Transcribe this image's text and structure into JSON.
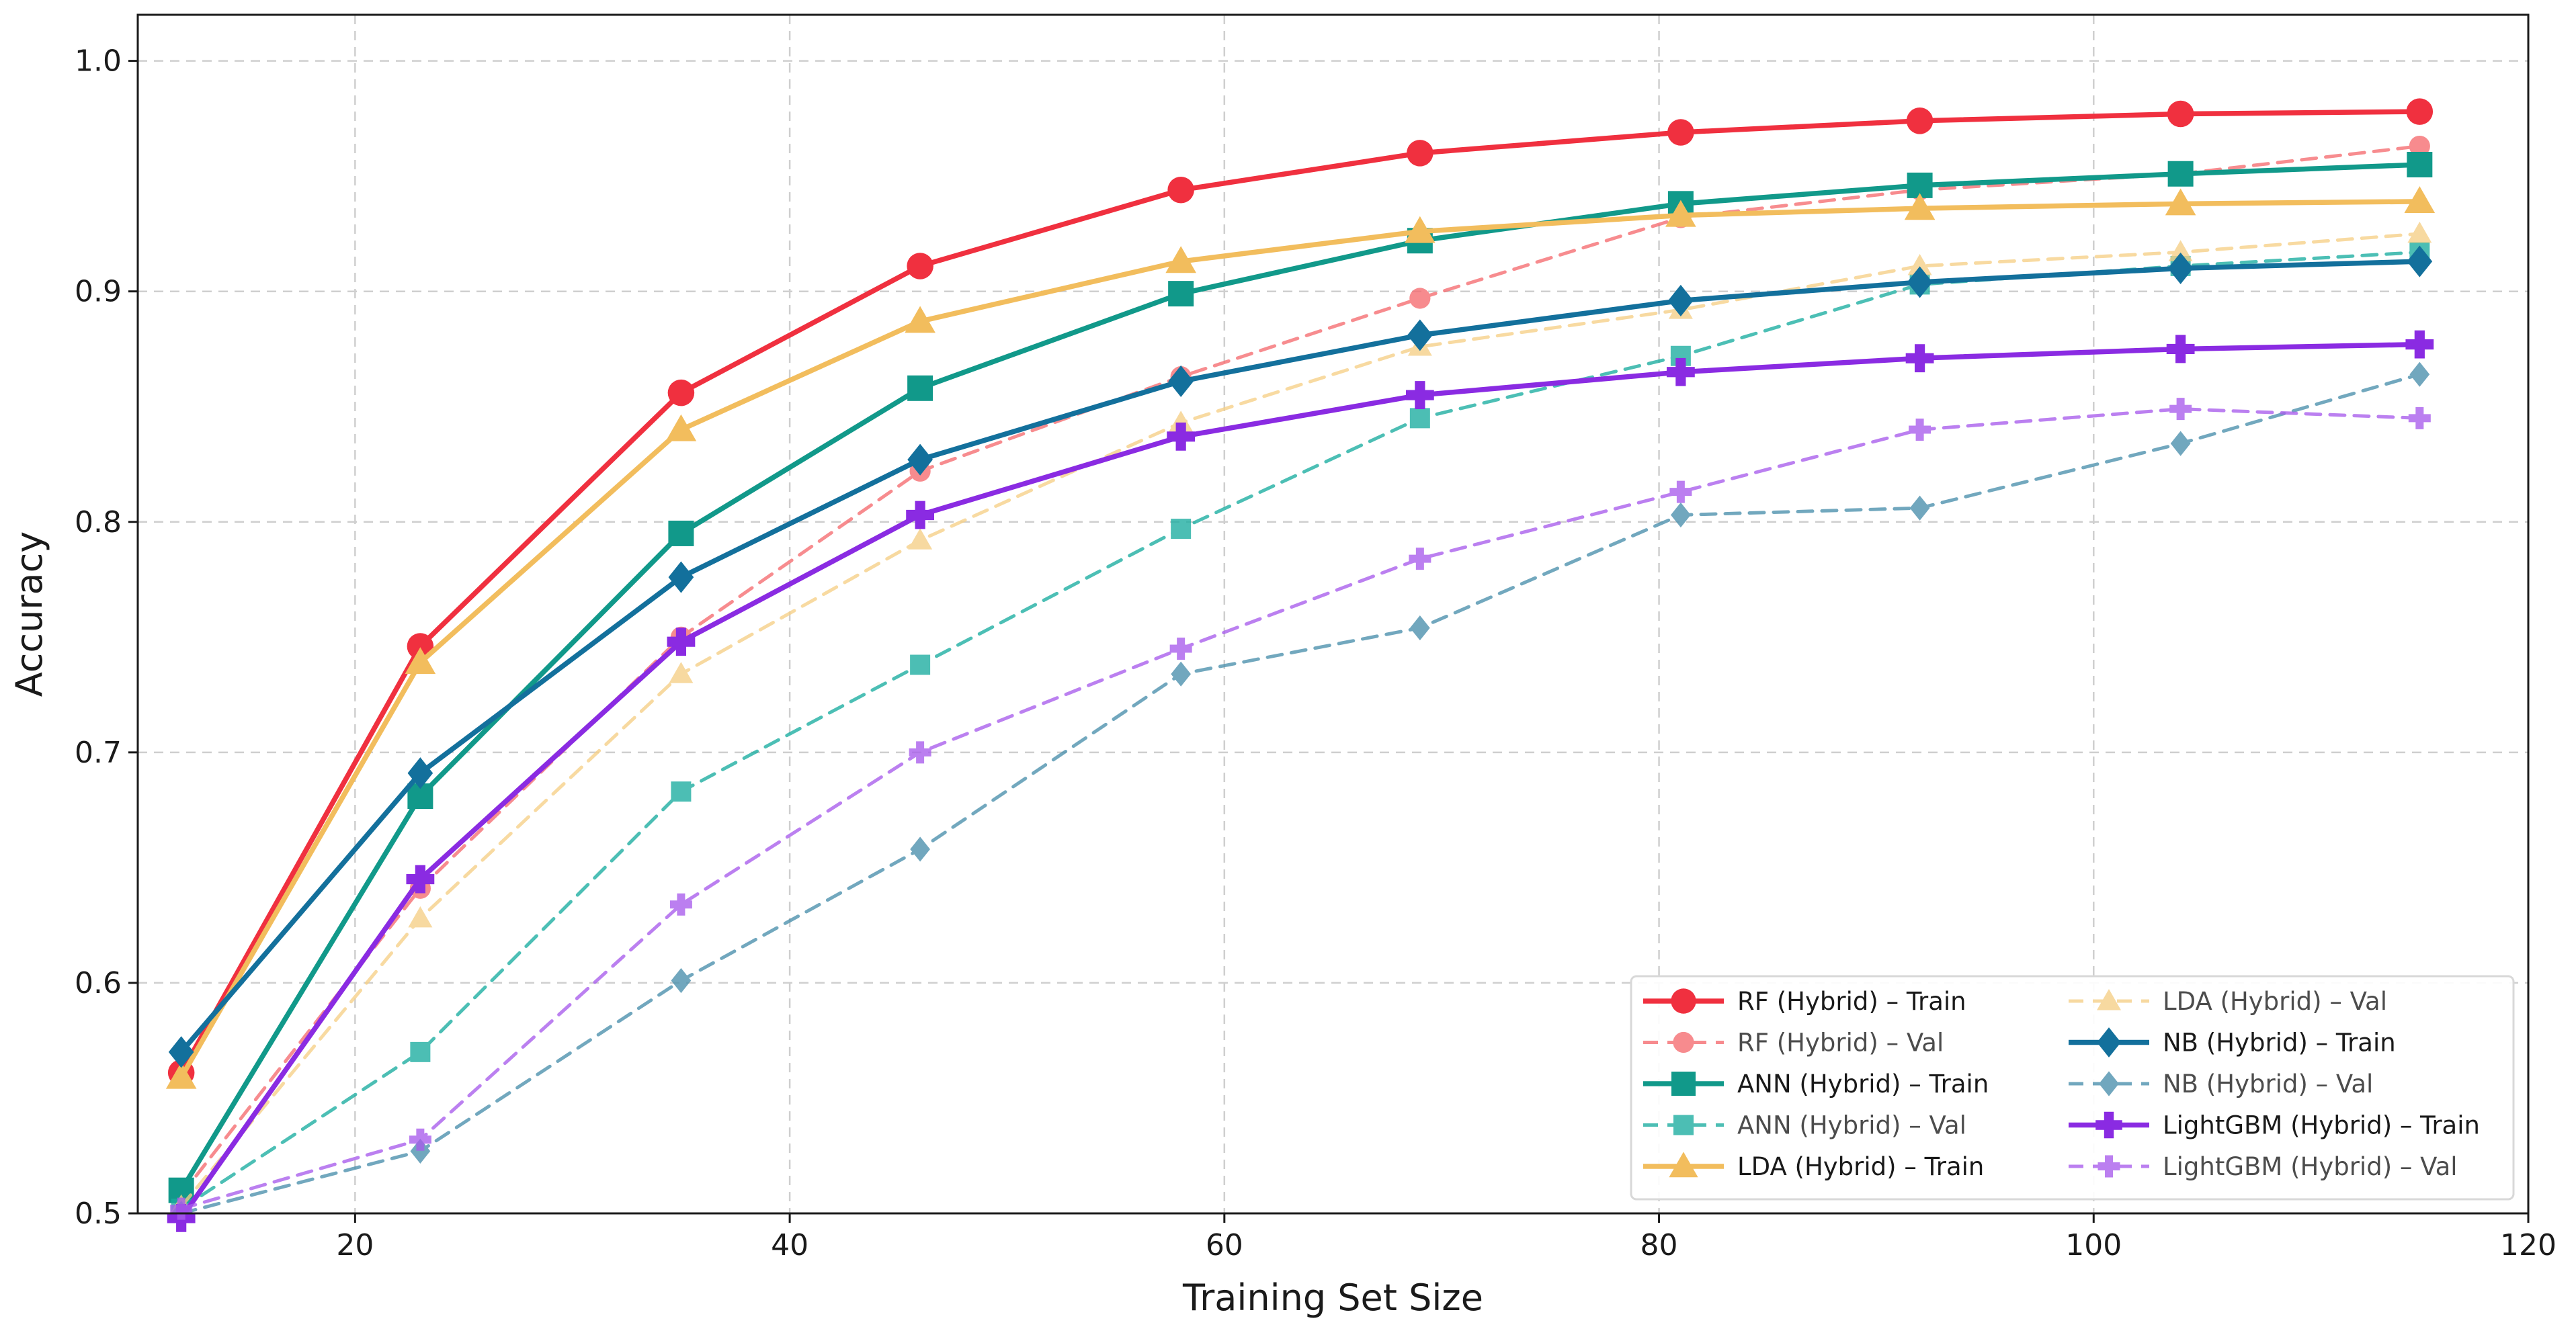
{
  "chart_data": {
    "type": "line",
    "title": "",
    "xlabel": "Training Set Size",
    "ylabel": "Accuracy",
    "xlim": [
      10,
      120
    ],
    "ylim": [
      0.5,
      1.02
    ],
    "xticks": [
      20,
      40,
      60,
      80,
      100,
      120
    ],
    "yticks": [
      0.5,
      0.6,
      0.7,
      0.8,
      0.9,
      1.0
    ],
    "xtick_labels": [
      "20",
      "40",
      "60",
      "80",
      "100",
      "120"
    ],
    "ytick_labels": [
      "0.5",
      "0.6",
      "0.7",
      "0.8",
      "0.9",
      "1.0"
    ],
    "grid": true,
    "legend_position": "bottom-right",
    "x": [
      12,
      23,
      35,
      46,
      58,
      69,
      81,
      92,
      104,
      115
    ],
    "series": [
      {
        "name": "RF (Hybrid) – Train",
        "color": "#f0303f",
        "dash": "solid",
        "marker": "circle",
        "values": [
          0.561,
          0.746,
          0.856,
          0.911,
          0.944,
          0.96,
          0.969,
          0.974,
          0.977,
          0.978
        ]
      },
      {
        "name": "RF (Hybrid) – Val",
        "color": "#f56b6f",
        "dash": "dashed",
        "marker": "circle",
        "values": [
          0.508,
          0.641,
          0.75,
          0.822,
          0.863,
          0.897,
          0.932,
          0.944,
          0.951,
          0.963
        ]
      },
      {
        "name": "ANN (Hybrid) – Train",
        "color": "#11998a",
        "dash": "solid",
        "marker": "square",
        "values": [
          0.51,
          0.681,
          0.795,
          0.858,
          0.899,
          0.922,
          0.938,
          0.946,
          0.951,
          0.955
        ]
      },
      {
        "name": "ANN (Hybrid) – Val",
        "color": "#1aada0",
        "dash": "dashed",
        "marker": "square",
        "values": [
          0.502,
          0.57,
          0.683,
          0.738,
          0.797,
          0.845,
          0.872,
          0.903,
          0.911,
          0.917
        ]
      },
      {
        "name": "LDA (Hybrid) – Train",
        "color": "#f2bd5d",
        "dash": "solid",
        "marker": "triangle",
        "values": [
          0.559,
          0.739,
          0.84,
          0.887,
          0.913,
          0.926,
          0.933,
          0.936,
          0.938,
          0.939
        ]
      },
      {
        "name": "LDA (Hybrid) – Val",
        "color": "#f6cf86",
        "dash": "dashed",
        "marker": "triangle",
        "values": [
          0.503,
          0.628,
          0.734,
          0.792,
          0.843,
          0.876,
          0.892,
          0.911,
          0.917,
          0.925
        ]
      },
      {
        "name": "NB (Hybrid) – Train",
        "color": "#13709c",
        "dash": "solid",
        "marker": "diamond",
        "values": [
          0.57,
          0.691,
          0.776,
          0.827,
          0.861,
          0.881,
          0.896,
          0.904,
          0.91,
          0.913
        ]
      },
      {
        "name": "NB (Hybrid) – Val",
        "color": "#4a8fac",
        "dash": "dashed",
        "marker": "diamond",
        "values": [
          0.5,
          0.527,
          0.601,
          0.658,
          0.734,
          0.754,
          0.803,
          0.806,
          0.834,
          0.864
        ]
      },
      {
        "name": "LightGBM (Hybrid) – Train",
        "color": "#8a2be2",
        "dash": "solid",
        "marker": "plus",
        "values": [
          0.498,
          0.645,
          0.748,
          0.803,
          0.837,
          0.855,
          0.865,
          0.871,
          0.875,
          0.877
        ]
      },
      {
        "name": "LightGBM (Hybrid) – Val",
        "color": "#a85cec",
        "dash": "dashed",
        "marker": "plus",
        "values": [
          0.502,
          0.532,
          0.634,
          0.7,
          0.745,
          0.784,
          0.813,
          0.84,
          0.849,
          0.845
        ]
      }
    ]
  }
}
